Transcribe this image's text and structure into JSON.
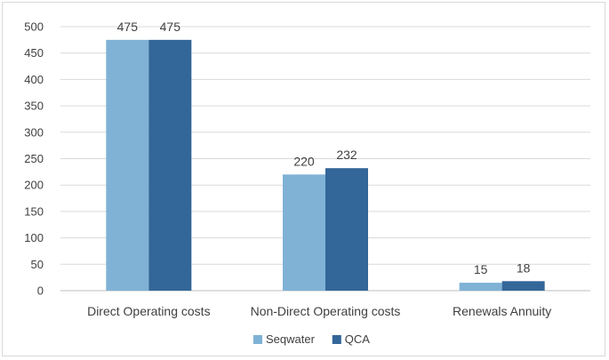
{
  "chart_data": {
    "type": "bar",
    "categories": [
      "Direct Operating costs",
      "Non-Direct Operating costs",
      "Renewals Annuity"
    ],
    "series": [
      {
        "name": "Seqwater",
        "values": [
          475,
          220,
          15
        ],
        "color": "#7fb2d5"
      },
      {
        "name": "QCA",
        "values": [
          475,
          232,
          18
        ],
        "color": "#336699"
      }
    ],
    "ylim": [
      0,
      500
    ],
    "yticks": [
      0,
      50,
      100,
      150,
      200,
      250,
      300,
      350,
      400,
      450,
      500
    ],
    "grid": true,
    "legend_position": "bottom"
  }
}
